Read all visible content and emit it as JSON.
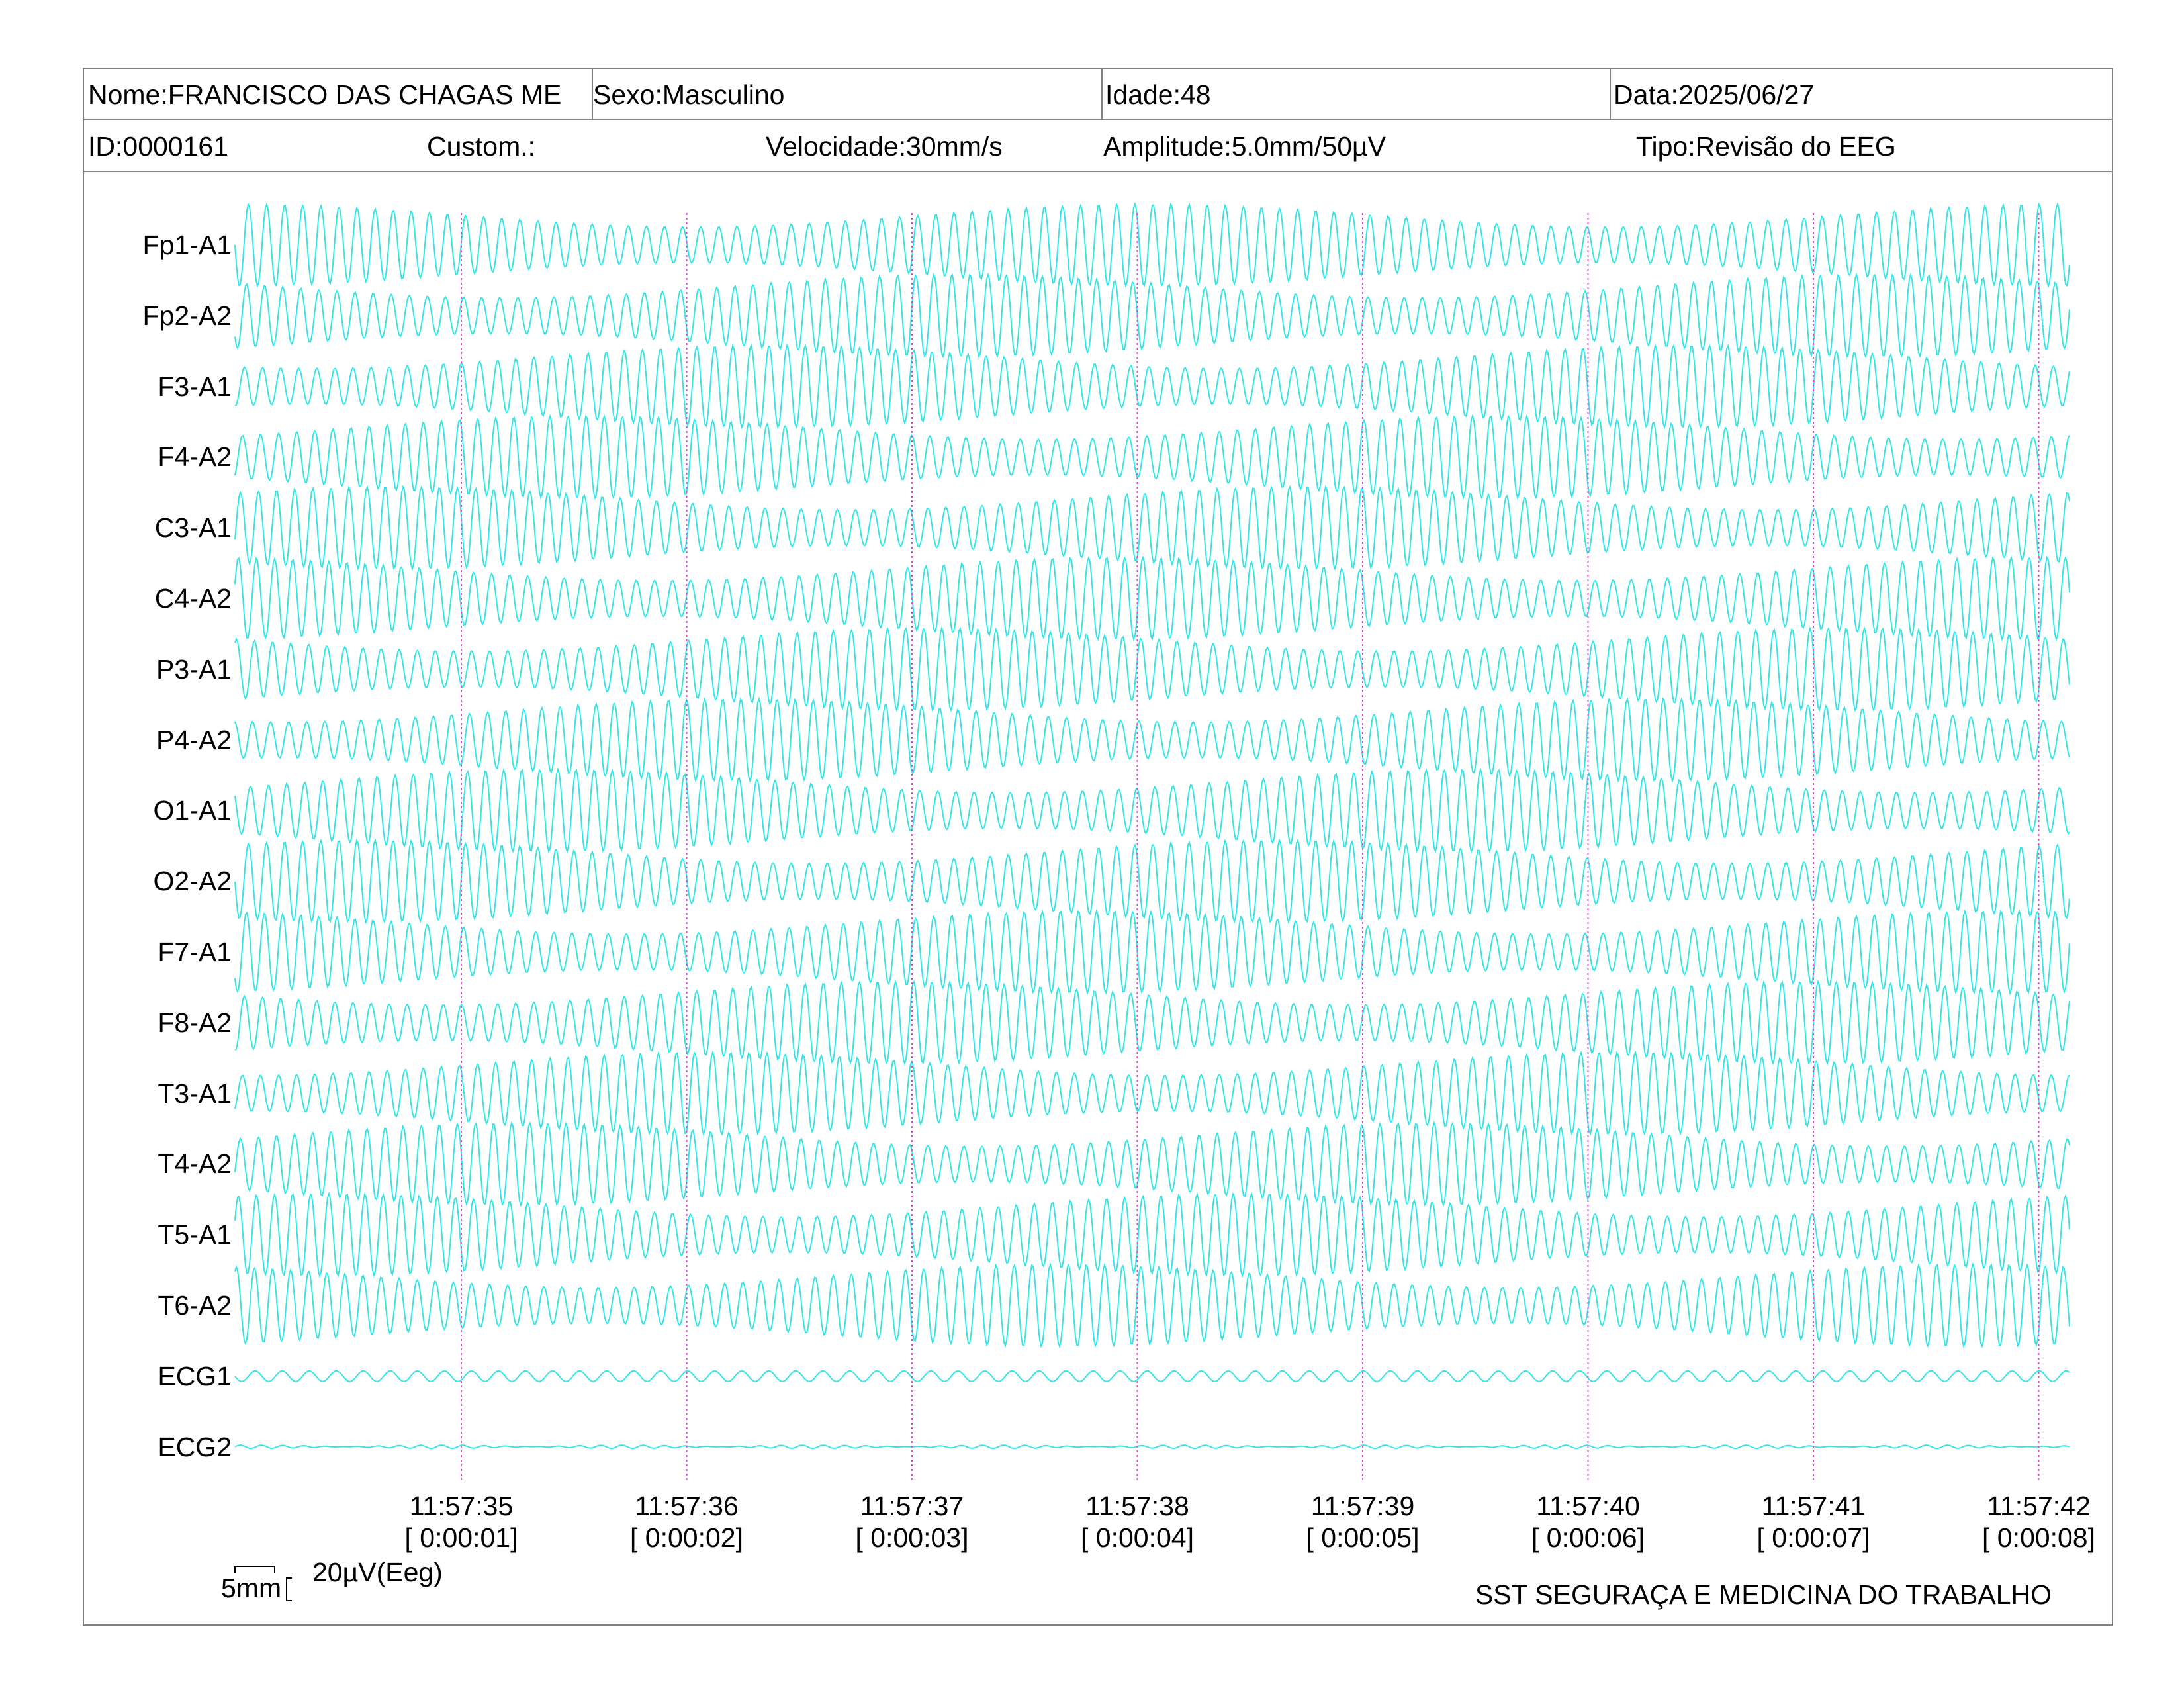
{
  "header": {
    "name": "Nome:FRANCISCO DAS CHAGAS ME",
    "sex": "Sexo:Masculino",
    "age": "Idade:48",
    "date": "Data:2025/06/27",
    "id": "ID:0000161",
    "custom": "Custom.:",
    "speed": "Velocidade:30mm/s",
    "amplitude": "Amplitude:5.0mm/50µV",
    "type": "Tipo:Revisão do EEG"
  },
  "channels": [
    "Fp1-A1",
    "Fp2-A2",
    "F3-A1",
    "F4-A2",
    "C3-A1",
    "C4-A2",
    "P3-A1",
    "P4-A2",
    "O1-A1",
    "O2-A2",
    "F7-A1",
    "F8-A2",
    "T3-A1",
    "T4-A2",
    "T5-A1",
    "T6-A2",
    "ECG1",
    "ECG2"
  ],
  "time_marks": [
    {
      "clock": "11:57:35",
      "elapsed": "[ 0:00:01]"
    },
    {
      "clock": "11:57:36",
      "elapsed": "[ 0:00:02]"
    },
    {
      "clock": "11:57:37",
      "elapsed": "[ 0:00:03]"
    },
    {
      "clock": "11:57:38",
      "elapsed": "[ 0:00:04]"
    },
    {
      "clock": "11:57:39",
      "elapsed": "[ 0:00:05]"
    },
    {
      "clock": "11:57:40",
      "elapsed": "[ 0:00:06]"
    },
    {
      "clock": "11:57:41",
      "elapsed": "[ 0:00:07]"
    },
    {
      "clock": "11:57:42",
      "elapsed": "[ 0:00:08]"
    }
  ],
  "scale": {
    "time_label": "5mm",
    "amp_label": "20µV(Eeg)"
  },
  "footer": {
    "company": "SST SEGURAÇA E MEDICINA DO TRABALHO"
  },
  "colors": {
    "trace": "#33e6e6",
    "marker": "#d64fd6",
    "border": "#808080"
  }
}
